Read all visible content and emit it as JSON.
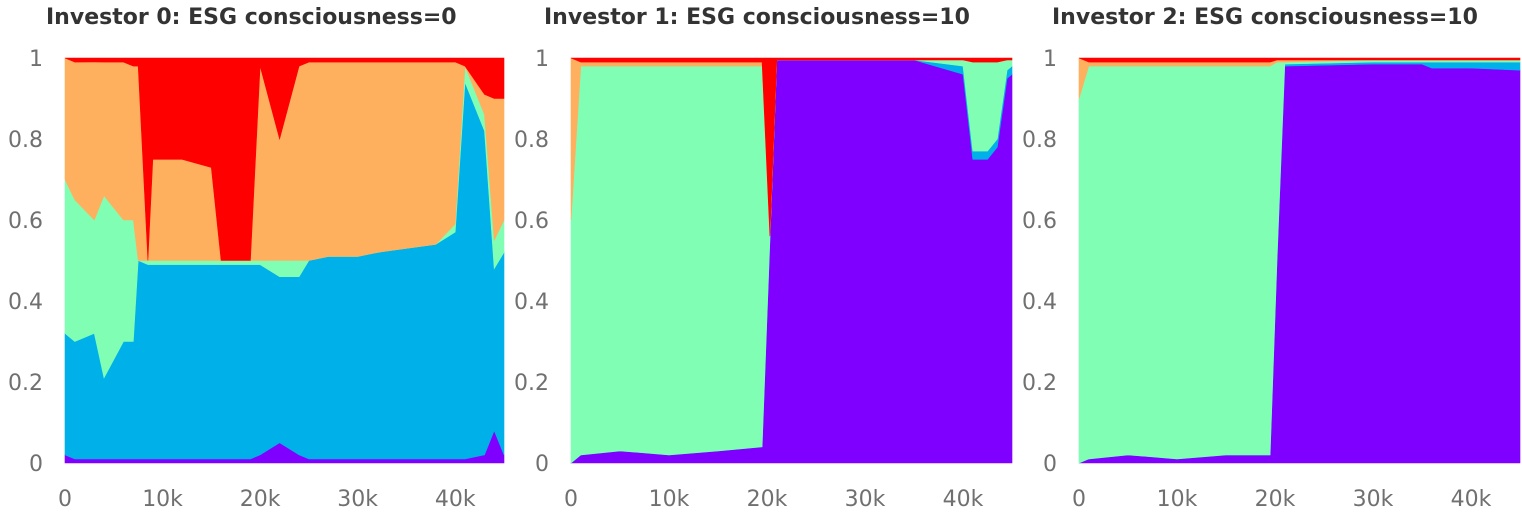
{
  "chart_data": [
    {
      "type": "area",
      "title": "Investor 0: ESG consciousness=0",
      "xlim": [
        0,
        45000
      ],
      "ylim": [
        0,
        1
      ],
      "xticks": [
        0,
        10000,
        20000,
        30000,
        40000
      ],
      "xtick_labels": [
        "0",
        "10k",
        "20k",
        "30k",
        "40k"
      ],
      "yticks": [
        0,
        0.2,
        0.4,
        0.6,
        0.8,
        1
      ],
      "ytick_labels": [
        "0",
        "0.2",
        "0.4",
        "0.6",
        "0.8",
        "1"
      ],
      "stacked": true,
      "x": [
        0,
        1000,
        3000,
        4000,
        6000,
        7000,
        7500,
        8500,
        9000,
        12000,
        15000,
        16000,
        18000,
        19000,
        20000,
        22000,
        24000,
        25000,
        27000,
        30000,
        32000,
        35000,
        38000,
        40000,
        41000,
        43000,
        44000,
        45000
      ],
      "series": [
        {
          "color": "#8000ff",
          "values": [
            0.02,
            0.01,
            0.01,
            0.01,
            0.01,
            0.01,
            0.01,
            0.01,
            0.01,
            0.01,
            0.01,
            0.01,
            0.01,
            0.01,
            0.02,
            0.05,
            0.02,
            0.01,
            0.01,
            0.01,
            0.01,
            0.01,
            0.01,
            0.01,
            0.01,
            0.02,
            0.08,
            0.02
          ]
        },
        {
          "color": "#00b0e8",
          "values": [
            0.3,
            0.29,
            0.31,
            0.2,
            0.29,
            0.29,
            0.49,
            0.48,
            0.48,
            0.48,
            0.48,
            0.48,
            0.48,
            0.48,
            0.47,
            0.41,
            0.44,
            0.49,
            0.5,
            0.5,
            0.51,
            0.52,
            0.53,
            0.56,
            0.93,
            0.8,
            0.4,
            0.5
          ]
        },
        {
          "color": "#80ffb4",
          "values": [
            0.38,
            0.35,
            0.28,
            0.45,
            0.3,
            0.3,
            0.0,
            0.01,
            0.01,
            0.01,
            0.01,
            0.01,
            0.01,
            0.01,
            0.01,
            0.04,
            0.04,
            0.0,
            0.0,
            0.0,
            0.0,
            0.0,
            0.0,
            0.02,
            0.04,
            0.04,
            0.07,
            0.08
          ]
        },
        {
          "color": "#ffb05f",
          "values": [
            0.3,
            0.34,
            0.39,
            0.33,
            0.39,
            0.38,
            0.48,
            0.0,
            0.25,
            0.25,
            0.23,
            0.0,
            0.0,
            0.0,
            0.48,
            0.3,
            0.48,
            0.49,
            0.48,
            0.48,
            0.47,
            0.46,
            0.45,
            0.4,
            0.0,
            0.05,
            0.35,
            0.3
          ]
        },
        {
          "color": "#ff0000",
          "values": [
            0.0,
            0.01,
            0.01,
            0.01,
            0.01,
            0.02,
            0.02,
            0.5,
            0.25,
            0.25,
            0.27,
            0.5,
            0.5,
            0.5,
            0.02,
            0.2,
            0.02,
            0.01,
            0.01,
            0.01,
            0.01,
            0.01,
            0.01,
            0.01,
            0.02,
            0.09,
            0.1,
            0.1
          ]
        }
      ]
    },
    {
      "type": "area",
      "title": "Investor 1: ESG consciousness=10",
      "xlim": [
        0,
        45000
      ],
      "ylim": [
        0,
        1
      ],
      "xticks": [
        0,
        10000,
        20000,
        30000,
        40000
      ],
      "xtick_labels": [
        "0",
        "10k",
        "20k",
        "30k",
        "40k"
      ],
      "yticks": [
        0,
        0.2,
        0.4,
        0.6,
        0.8,
        1
      ],
      "ytick_labels": [
        "0",
        "0.2",
        "0.4",
        "0.6",
        "0.8",
        "1"
      ],
      "stacked": true,
      "x": [
        0,
        1000,
        5000,
        10000,
        15000,
        19500,
        20300,
        21000,
        25000,
        30000,
        35000,
        40000,
        41000,
        42500,
        43500,
        44500,
        45000
      ],
      "series": [
        {
          "color": "#8000ff",
          "values": [
            0.0,
            0.02,
            0.03,
            0.02,
            0.03,
            0.04,
            0.55,
            0.995,
            0.995,
            0.995,
            0.995,
            0.96,
            0.75,
            0.75,
            0.78,
            0.95,
            0.96
          ]
        },
        {
          "color": "#00b0e8",
          "values": [
            0.0,
            0.0,
            0.0,
            0.0,
            0.0,
            0.0,
            0.0,
            0.0,
            0.0,
            0.0,
            0.0,
            0.02,
            0.02,
            0.02,
            0.02,
            0.02,
            0.02
          ]
        },
        {
          "color": "#80ffb4",
          "values": [
            0.6,
            0.96,
            0.95,
            0.96,
            0.95,
            0.94,
            0.01,
            0.0,
            0.0,
            0.0,
            0.0,
            0.015,
            0.22,
            0.22,
            0.19,
            0.025,
            0.015
          ]
        },
        {
          "color": "#ffb05f",
          "values": [
            0.4,
            0.01,
            0.01,
            0.01,
            0.01,
            0.01,
            0.0,
            0.0,
            0.0,
            0.0,
            0.0,
            0.0,
            0.0,
            0.0,
            0.0,
            0.0,
            0.0
          ]
        },
        {
          "color": "#ff0000",
          "values": [
            0.0,
            0.01,
            0.01,
            0.01,
            0.01,
            0.01,
            0.44,
            0.005,
            0.005,
            0.005,
            0.005,
            0.005,
            0.01,
            0.01,
            0.01,
            0.005,
            0.005
          ]
        }
      ]
    },
    {
      "type": "area",
      "title": "Investor 2: ESG consciousness=10",
      "xlim": [
        0,
        45000
      ],
      "ylim": [
        0,
        1
      ],
      "xticks": [
        0,
        10000,
        20000,
        30000,
        40000
      ],
      "xtick_labels": [
        "0",
        "10k",
        "20k",
        "30k",
        "40k"
      ],
      "yticks": [
        0,
        0.2,
        0.4,
        0.6,
        0.8,
        1
      ],
      "ytick_labels": [
        "0",
        "0.2",
        "0.4",
        "0.6",
        "0.8",
        "1"
      ],
      "stacked": true,
      "x": [
        0,
        1000,
        5000,
        10000,
        15000,
        19500,
        20200,
        21000,
        30000,
        35000,
        36000,
        40000,
        45000
      ],
      "series": [
        {
          "color": "#8000ff",
          "values": [
            0.0,
            0.01,
            0.02,
            0.01,
            0.02,
            0.02,
            0.5,
            0.98,
            0.985,
            0.985,
            0.975,
            0.975,
            0.97
          ]
        },
        {
          "color": "#00b0e8",
          "values": [
            0.0,
            0.0,
            0.0,
            0.0,
            0.0,
            0.0,
            0.0,
            0.005,
            0.005,
            0.005,
            0.015,
            0.015,
            0.02
          ]
        },
        {
          "color": "#80ffb4",
          "values": [
            0.9,
            0.97,
            0.96,
            0.97,
            0.96,
            0.96,
            0.49,
            0.005,
            0.005,
            0.005,
            0.005,
            0.005,
            0.005
          ]
        },
        {
          "color": "#ffb05f",
          "values": [
            0.1,
            0.01,
            0.01,
            0.01,
            0.01,
            0.01,
            0.005,
            0.005,
            0.0,
            0.0,
            0.0,
            0.0,
            0.0
          ]
        },
        {
          "color": "#ff0000",
          "values": [
            0.0,
            0.01,
            0.01,
            0.01,
            0.01,
            0.01,
            0.005,
            0.005,
            0.005,
            0.005,
            0.005,
            0.005,
            0.005
          ]
        }
      ]
    }
  ]
}
